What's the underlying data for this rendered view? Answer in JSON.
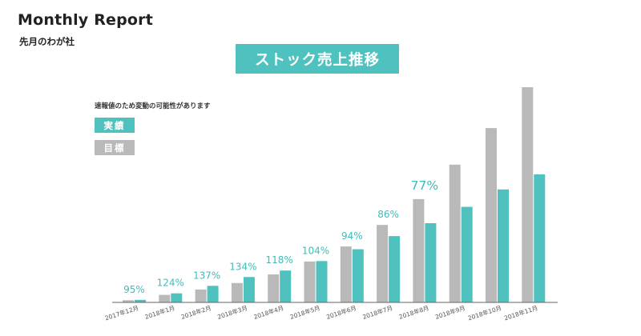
{
  "header": {
    "title": "Monthly Report",
    "subtitle": "先月のわが社"
  },
  "chart_data": {
    "type": "bar",
    "title": "ストック売上推移",
    "note": "速報値のため変動の可能性があります",
    "legend_placement": "top-left",
    "grid": false,
    "categories": [
      "2017年12月",
      "2018年1月",
      "2018年2月",
      "2018年3月",
      "2018年4月",
      "2018年5月",
      "2018年6月",
      "2018年7月",
      "2018年8月",
      "2018年9月",
      "2018年10月",
      "2018年11月"
    ],
    "series": [
      {
        "name": "目標",
        "color": "#b9b9b9",
        "values": [
          1,
          3.5,
          6,
          9,
          13,
          19,
          26,
          36,
          48,
          64,
          81,
          100
        ]
      },
      {
        "name": "実績",
        "color": "#4fc1be",
        "values": [
          1.2,
          4.2,
          7.7,
          11.8,
          14.8,
          19.2,
          24.7,
          30.8,
          36.8,
          44.4,
          52.5,
          59.5
        ]
      }
    ],
    "percent_labels": [
      "95%",
      "124%",
      "137%",
      "134%",
      "118%",
      "104%",
      "94%",
      "86%",
      "77%",
      "",
      "",
      ""
    ],
    "highlight_index": 8,
    "ylim": [
      0,
      100
    ]
  },
  "colors": {
    "accent": "#4fc1be",
    "target": "#b9b9b9",
    "label_teal": "#3fbcb8",
    "axis": "#666666"
  }
}
